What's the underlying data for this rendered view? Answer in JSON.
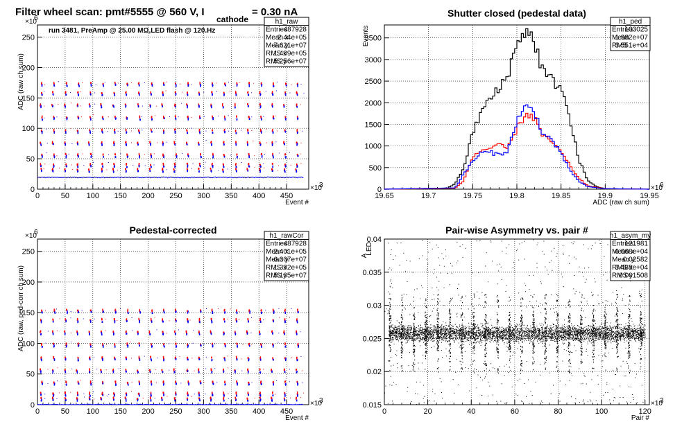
{
  "chart_data": [
    {
      "id": "raw",
      "type": "scatter",
      "title_main": "Filter wheel scan: pmt#5555 @   560 V, I",
      "title_sub": "cathode",
      "title_tail": " = 0.30 nA",
      "annotation": "run 3481, PreAmp @ 25.00 MΩ,LED flash @  120.Hz",
      "xlabel": "Event #",
      "ylabel": "ADC (raw ch sum)",
      "x_exponent": "×10",
      "x_exponent_power": "3",
      "y_exponent": "×10",
      "y_exponent_power": "6",
      "xlim": [
        0,
        490
      ],
      "ylim": [
        0,
        270
      ],
      "xticks": [
        "0",
        "50",
        "100",
        "150",
        "200",
        "250",
        "300",
        "350",
        "400",
        "450"
      ],
      "yticks": [
        "0",
        "50",
        "100",
        "150",
        "200",
        "250"
      ],
      "grid": true,
      "stats_box": {
        "name": "h1_raw",
        "rows": [
          {
            "label": "Entries",
            "value": "487928"
          },
          {
            "label": "Mean x",
            "value": "2.44e+05"
          },
          {
            "label": "Mean y",
            "value": "7.621e+07"
          },
          {
            "label": "RMS x",
            "value": "1.409e+05"
          },
          {
            "label": "RMS y",
            "value": "5.256e+07"
          }
        ]
      },
      "baseline": 20,
      "levels": [
        34,
        42,
        58,
        78,
        98,
        120,
        140,
        160,
        175
      ],
      "cycle_period": 22
    },
    {
      "id": "ped",
      "type": "line",
      "title": "Shutter closed (pedestal data)",
      "xlabel": "ADC (raw ch sum)",
      "ylabel": "Events",
      "x_exponent": "×10",
      "x_exponent_power": "6",
      "xlim": [
        19.65,
        19.95
      ],
      "ylim": [
        0,
        3800
      ],
      "xticks": [
        "19.65",
        "19.7",
        "19.75",
        "19.8",
        "19.85",
        "19.9",
        "19.95"
      ],
      "yticks": [
        "0",
        "500",
        "1000",
        "1500",
        "2000",
        "2500",
        "3000",
        "3500"
      ],
      "grid": true,
      "stats_box": {
        "name": "h1_ped",
        "rows": [
          {
            "label": "Entries",
            "value": "103025"
          },
          {
            "label": "Mean",
            "value": "1.982e+07"
          },
          {
            "label": "RMS",
            "value": "3.551e+04"
          }
        ]
      },
      "series": [
        {
          "color": "#000000",
          "x": [
            19.65,
            19.72,
            19.73,
            19.74,
            19.75,
            19.76,
            19.77,
            19.78,
            19.79,
            19.8,
            19.805,
            19.81,
            19.815,
            19.82,
            19.83,
            19.84,
            19.85,
            19.86,
            19.87,
            19.88,
            19.89,
            19.9,
            19.95
          ],
          "y": [
            0,
            10,
            120,
            500,
            1300,
            1800,
            2100,
            2300,
            2700,
            3300,
            3600,
            3700,
            3550,
            3400,
            2700,
            2500,
            2400,
            1600,
            700,
            200,
            60,
            10,
            0
          ]
        },
        {
          "color": "#ff0000",
          "x": [
            19.65,
            19.73,
            19.74,
            19.75,
            19.76,
            19.77,
            19.78,
            19.79,
            19.8,
            19.81,
            19.82,
            19.83,
            19.84,
            19.85,
            19.86,
            19.87,
            19.88,
            19.9,
            19.95
          ],
          "y": [
            0,
            20,
            200,
            750,
            900,
            950,
            1000,
            950,
            1400,
            1750,
            1650,
            1200,
            1100,
            850,
            550,
            250,
            80,
            10,
            0
          ]
        },
        {
          "color": "#0000ff",
          "x": [
            19.65,
            19.73,
            19.74,
            19.75,
            19.76,
            19.77,
            19.78,
            19.79,
            19.8,
            19.81,
            19.82,
            19.83,
            19.84,
            19.85,
            19.86,
            19.87,
            19.88,
            19.9,
            19.95
          ],
          "y": [
            0,
            30,
            350,
            650,
            850,
            850,
            800,
            900,
            1600,
            1900,
            1800,
            1250,
            1150,
            800,
            450,
            180,
            60,
            10,
            0
          ]
        }
      ]
    },
    {
      "id": "cor",
      "type": "scatter",
      "title": "Pedestal-corrected",
      "xlabel": "Event #",
      "ylabel": "ADC (raw, ped-corr ch sum)",
      "x_exponent": "×10",
      "x_exponent_power": "3",
      "y_exponent": "×10",
      "y_exponent_power": "6",
      "xlim": [
        0,
        490
      ],
      "ylim": [
        0,
        270
      ],
      "xticks": [
        "0",
        "50",
        "100",
        "150",
        "200",
        "250",
        "300",
        "350",
        "400",
        "450"
      ],
      "yticks": [
        "0",
        "50",
        "100",
        "150",
        "200",
        "250"
      ],
      "grid": true,
      "stats_box": {
        "name": "h1_rawCor",
        "rows": [
          {
            "label": "Entries",
            "value": "487928"
          },
          {
            "label": "Mean x",
            "value": "2.401e+05"
          },
          {
            "label": "Mean y",
            "value": "6.307e+07"
          },
          {
            "label": "RMS x",
            "value": "1.392e+05"
          },
          {
            "label": "RMS y",
            "value": "5.165e+07"
          }
        ]
      },
      "baseline": 0,
      "levels": [
        12,
        20,
        38,
        58,
        78,
        100,
        120,
        140,
        155
      ],
      "cycle_period": 22
    },
    {
      "id": "asym",
      "type": "scatter",
      "title": "Pair-wise Asymmetry vs. pair #",
      "ylabel": "A",
      "ylabel_sub": "LED",
      "xlabel": "Pair #",
      "x_exponent": "×10",
      "x_exponent_power": "3",
      "xlim": [
        0,
        122
      ],
      "ylim": [
        0.015,
        0.04
      ],
      "xticks": [
        "0",
        "20",
        "40",
        "60",
        "80",
        "100",
        "120"
      ],
      "yticks": [
        "0.015",
        "0.02",
        "0.025",
        "0.03",
        "0.035",
        "0.04"
      ],
      "grid": true,
      "stats_box": {
        "name": "h1_asym_my",
        "rows": [
          {
            "label": "Entries",
            "value": "121981"
          },
          {
            "label": "Mean x",
            "value": "6.068e+04"
          },
          {
            "label": "Mean y",
            "value": "0.02582"
          },
          {
            "label": "RMS x",
            "value": "3.488e+04"
          },
          {
            "label": "RMS y",
            "value": "0.001508"
          }
        ]
      },
      "band_center": 0.0258,
      "band_halfwidth": 0.0009,
      "spike_period": 5.5
    }
  ]
}
